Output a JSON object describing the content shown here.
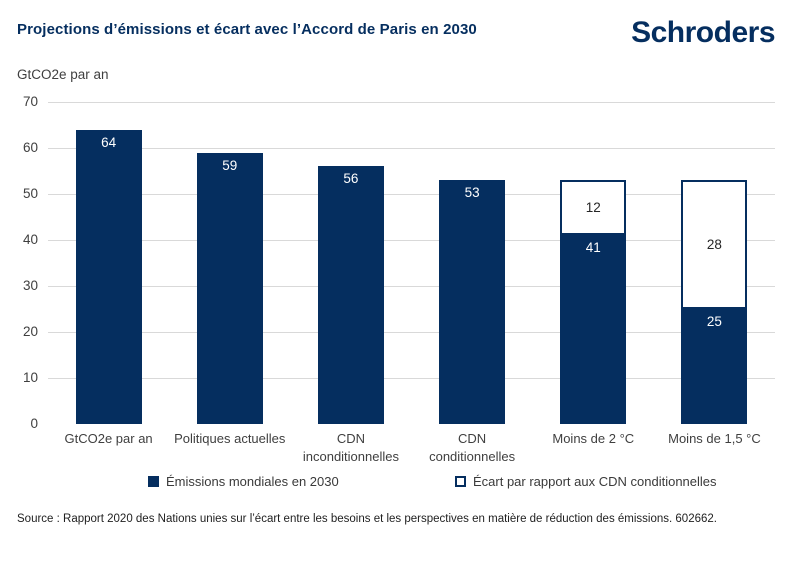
{
  "header": {
    "title": "Projections d’émissions et écart avec l’Accord de Paris en 2030",
    "logo_text": "Schroders"
  },
  "chart_data": {
    "type": "bar",
    "stacked": true,
    "title": "Projections d’émissions et écart avec l’Accord de Paris en 2030",
    "ylabel": "GtCO2e par an",
    "xlabel": "",
    "ylim": [
      0,
      70
    ],
    "y_ticks": [
      0,
      10,
      20,
      30,
      40,
      50,
      60,
      70
    ],
    "grid": true,
    "legend_position": "bottom",
    "categories": [
      "GtCO2e par an",
      "Politiques actuelles",
      "CDN inconditionnelles",
      "CDN conditionnelles",
      "Moins de 2 °C",
      "Moins de 1,5 °C"
    ],
    "wrap_labels": [
      "CDN inconditionnelles",
      "CDN conditionnelles"
    ],
    "series": [
      {
        "name": "Émissions mondiales en 2030",
        "style": "solid",
        "color": "#052e5f",
        "values": [
          64,
          59,
          56,
          53,
          41,
          25
        ]
      },
      {
        "name": "Écart par rapport aux CDN conditionnelles",
        "style": "outline",
        "color": "#ffffff",
        "border_color": "#052e5f",
        "values": [
          0,
          0,
          0,
          0,
          12,
          28
        ]
      }
    ],
    "totals": [
      64,
      59,
      56,
      53,
      53,
      53
    ]
  },
  "source": "Source : Rapport 2020 des Nations unies sur l’écart entre les besoins et les perspectives en matière de réduction des émissions. 602662.",
  "colors": {
    "navy": "#052e5f",
    "gridline": "#d9d9d9",
    "axis_text": "#3f3f3f"
  }
}
